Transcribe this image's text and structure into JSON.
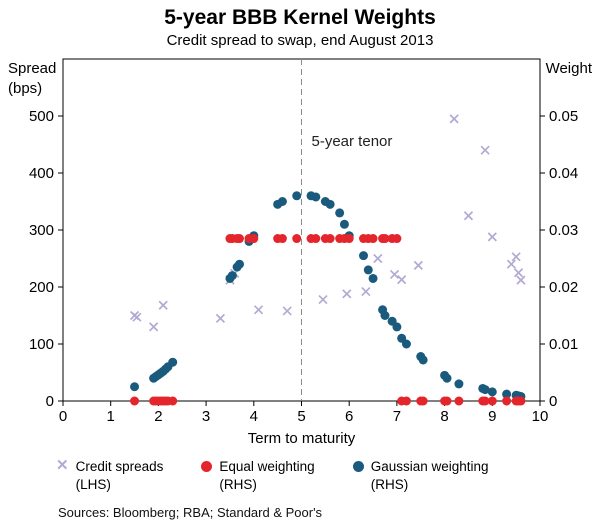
{
  "source_note": "Sources: Bloomberg; RBA; Standard & Poor's",
  "legend": [
    {
      "line1": "Credit spreads",
      "line2": "(LHS)",
      "marker": "x",
      "color": "#b3a9d3"
    },
    {
      "line1": "Equal weighting",
      "line2": "(RHS)",
      "marker": "circle",
      "color": "#e4262c"
    },
    {
      "line1": "Gaussian weighting",
      "line2": "(RHS)",
      "marker": "circle",
      "color": "#1a5b7d"
    }
  ],
  "chart_data": {
    "type": "scatter",
    "title": "5-year BBB Kernel Weights",
    "subtitle": "Credit spread to swap, end August 2013",
    "xlabel": "Term to maturity",
    "ylabel_left_lines": [
      "Spread",
      "(bps)"
    ],
    "ylabel_right": "Weight",
    "xlim": [
      0,
      10
    ],
    "x_ticks": [
      0,
      1,
      2,
      3,
      4,
      5,
      6,
      7,
      8,
      9,
      10
    ],
    "ylim_left": [
      0,
      600
    ],
    "left_ticks": [
      0,
      100,
      200,
      300,
      400,
      500
    ],
    "ylim_right": [
      0,
      0.06
    ],
    "right_tick_values": [
      0,
      0.01,
      0.02,
      0.03,
      0.04,
      0.05
    ],
    "right_tick_labels": [
      "0",
      "0.01",
      "0.02",
      "0.03",
      "0.04",
      "0.05"
    ],
    "grid": false,
    "vline": {
      "x": 5,
      "label": "5-year tenor"
    },
    "series": [
      {
        "name": "Credit spreads (LHS)",
        "axis": "left",
        "marker": "x",
        "color": "#b3a9d3",
        "points": [
          [
            1.5,
            150
          ],
          [
            1.55,
            147
          ],
          [
            1.9,
            130
          ],
          [
            2.1,
            168
          ],
          [
            3.3,
            145
          ],
          [
            3.5,
            212
          ],
          [
            3.6,
            224
          ],
          [
            4.1,
            160
          ],
          [
            4.7,
            158
          ],
          [
            5.45,
            178
          ],
          [
            5.95,
            188
          ],
          [
            6.35,
            192
          ],
          [
            6.6,
            250
          ],
          [
            6.95,
            222
          ],
          [
            7.1,
            213
          ],
          [
            7.45,
            238
          ],
          [
            8.2,
            495
          ],
          [
            8.5,
            325
          ],
          [
            8.85,
            440
          ],
          [
            9.0,
            288
          ],
          [
            9.4,
            240
          ],
          [
            9.5,
            253
          ],
          [
            9.55,
            225
          ],
          [
            9.6,
            212
          ]
        ]
      },
      {
        "name": "Gaussian weighting (RHS)",
        "axis": "right",
        "marker": "circle",
        "color": "#1a5b7d",
        "points": [
          [
            1.5,
            0.0025
          ],
          [
            1.9,
            0.004
          ],
          [
            1.95,
            0.0043
          ],
          [
            2.0,
            0.0046
          ],
          [
            2.05,
            0.0049
          ],
          [
            2.1,
            0.0052
          ],
          [
            2.15,
            0.0056
          ],
          [
            2.2,
            0.006
          ],
          [
            2.3,
            0.0068
          ],
          [
            3.5,
            0.0215
          ],
          [
            3.55,
            0.022
          ],
          [
            3.65,
            0.0235
          ],
          [
            3.7,
            0.024
          ],
          [
            3.9,
            0.028
          ],
          [
            4.0,
            0.029
          ],
          [
            4.5,
            0.0345
          ],
          [
            4.6,
            0.035
          ],
          [
            4.9,
            0.036
          ],
          [
            5.2,
            0.036
          ],
          [
            5.3,
            0.0358
          ],
          [
            5.5,
            0.035
          ],
          [
            5.6,
            0.0345
          ],
          [
            5.8,
            0.033
          ],
          [
            5.9,
            0.031
          ],
          [
            6.0,
            0.029
          ],
          [
            6.3,
            0.0255
          ],
          [
            6.4,
            0.023
          ],
          [
            6.5,
            0.0215
          ],
          [
            6.7,
            0.016
          ],
          [
            6.75,
            0.015
          ],
          [
            6.9,
            0.014
          ],
          [
            7.0,
            0.013
          ],
          [
            7.1,
            0.011
          ],
          [
            7.2,
            0.01
          ],
          [
            7.5,
            0.0078
          ],
          [
            7.55,
            0.0072
          ],
          [
            8.0,
            0.0045
          ],
          [
            8.05,
            0.004
          ],
          [
            8.3,
            0.003
          ],
          [
            8.8,
            0.0022
          ],
          [
            8.85,
            0.002
          ],
          [
            9.0,
            0.0016
          ],
          [
            9.3,
            0.0012
          ],
          [
            9.5,
            0.001
          ],
          [
            9.55,
            0.0009
          ],
          [
            9.6,
            0.0008
          ]
        ]
      },
      {
        "name": "Equal weighting (RHS)",
        "axis": "right",
        "marker": "circle",
        "color": "#e4262c",
        "points": [
          [
            1.5,
            0
          ],
          [
            1.9,
            0
          ],
          [
            1.95,
            0
          ],
          [
            2.0,
            0
          ],
          [
            2.05,
            0
          ],
          [
            2.1,
            0
          ],
          [
            2.15,
            0
          ],
          [
            2.2,
            0
          ],
          [
            2.3,
            0
          ],
          [
            3.5,
            0.0285
          ],
          [
            3.55,
            0.0285
          ],
          [
            3.65,
            0.0285
          ],
          [
            3.7,
            0.0285
          ],
          [
            3.9,
            0.0285
          ],
          [
            4.0,
            0.0285
          ],
          [
            4.5,
            0.0285
          ],
          [
            4.6,
            0.0285
          ],
          [
            4.9,
            0.0285
          ],
          [
            5.2,
            0.0285
          ],
          [
            5.3,
            0.0285
          ],
          [
            5.5,
            0.0285
          ],
          [
            5.6,
            0.0285
          ],
          [
            5.8,
            0.0285
          ],
          [
            5.9,
            0.0285
          ],
          [
            6.0,
            0.0285
          ],
          [
            6.3,
            0.0285
          ],
          [
            6.4,
            0.0285
          ],
          [
            6.5,
            0.0285
          ],
          [
            6.7,
            0.0285
          ],
          [
            6.75,
            0.0285
          ],
          [
            6.9,
            0.0285
          ],
          [
            7.0,
            0.0285
          ],
          [
            7.1,
            0
          ],
          [
            7.2,
            0
          ],
          [
            7.5,
            0
          ],
          [
            7.55,
            0
          ],
          [
            8.0,
            0
          ],
          [
            8.05,
            0
          ],
          [
            8.3,
            0
          ],
          [
            8.8,
            0
          ],
          [
            8.85,
            0
          ],
          [
            9.0,
            0
          ],
          [
            9.3,
            0
          ],
          [
            9.5,
            0
          ],
          [
            9.55,
            0
          ],
          [
            9.6,
            0
          ]
        ]
      }
    ]
  }
}
